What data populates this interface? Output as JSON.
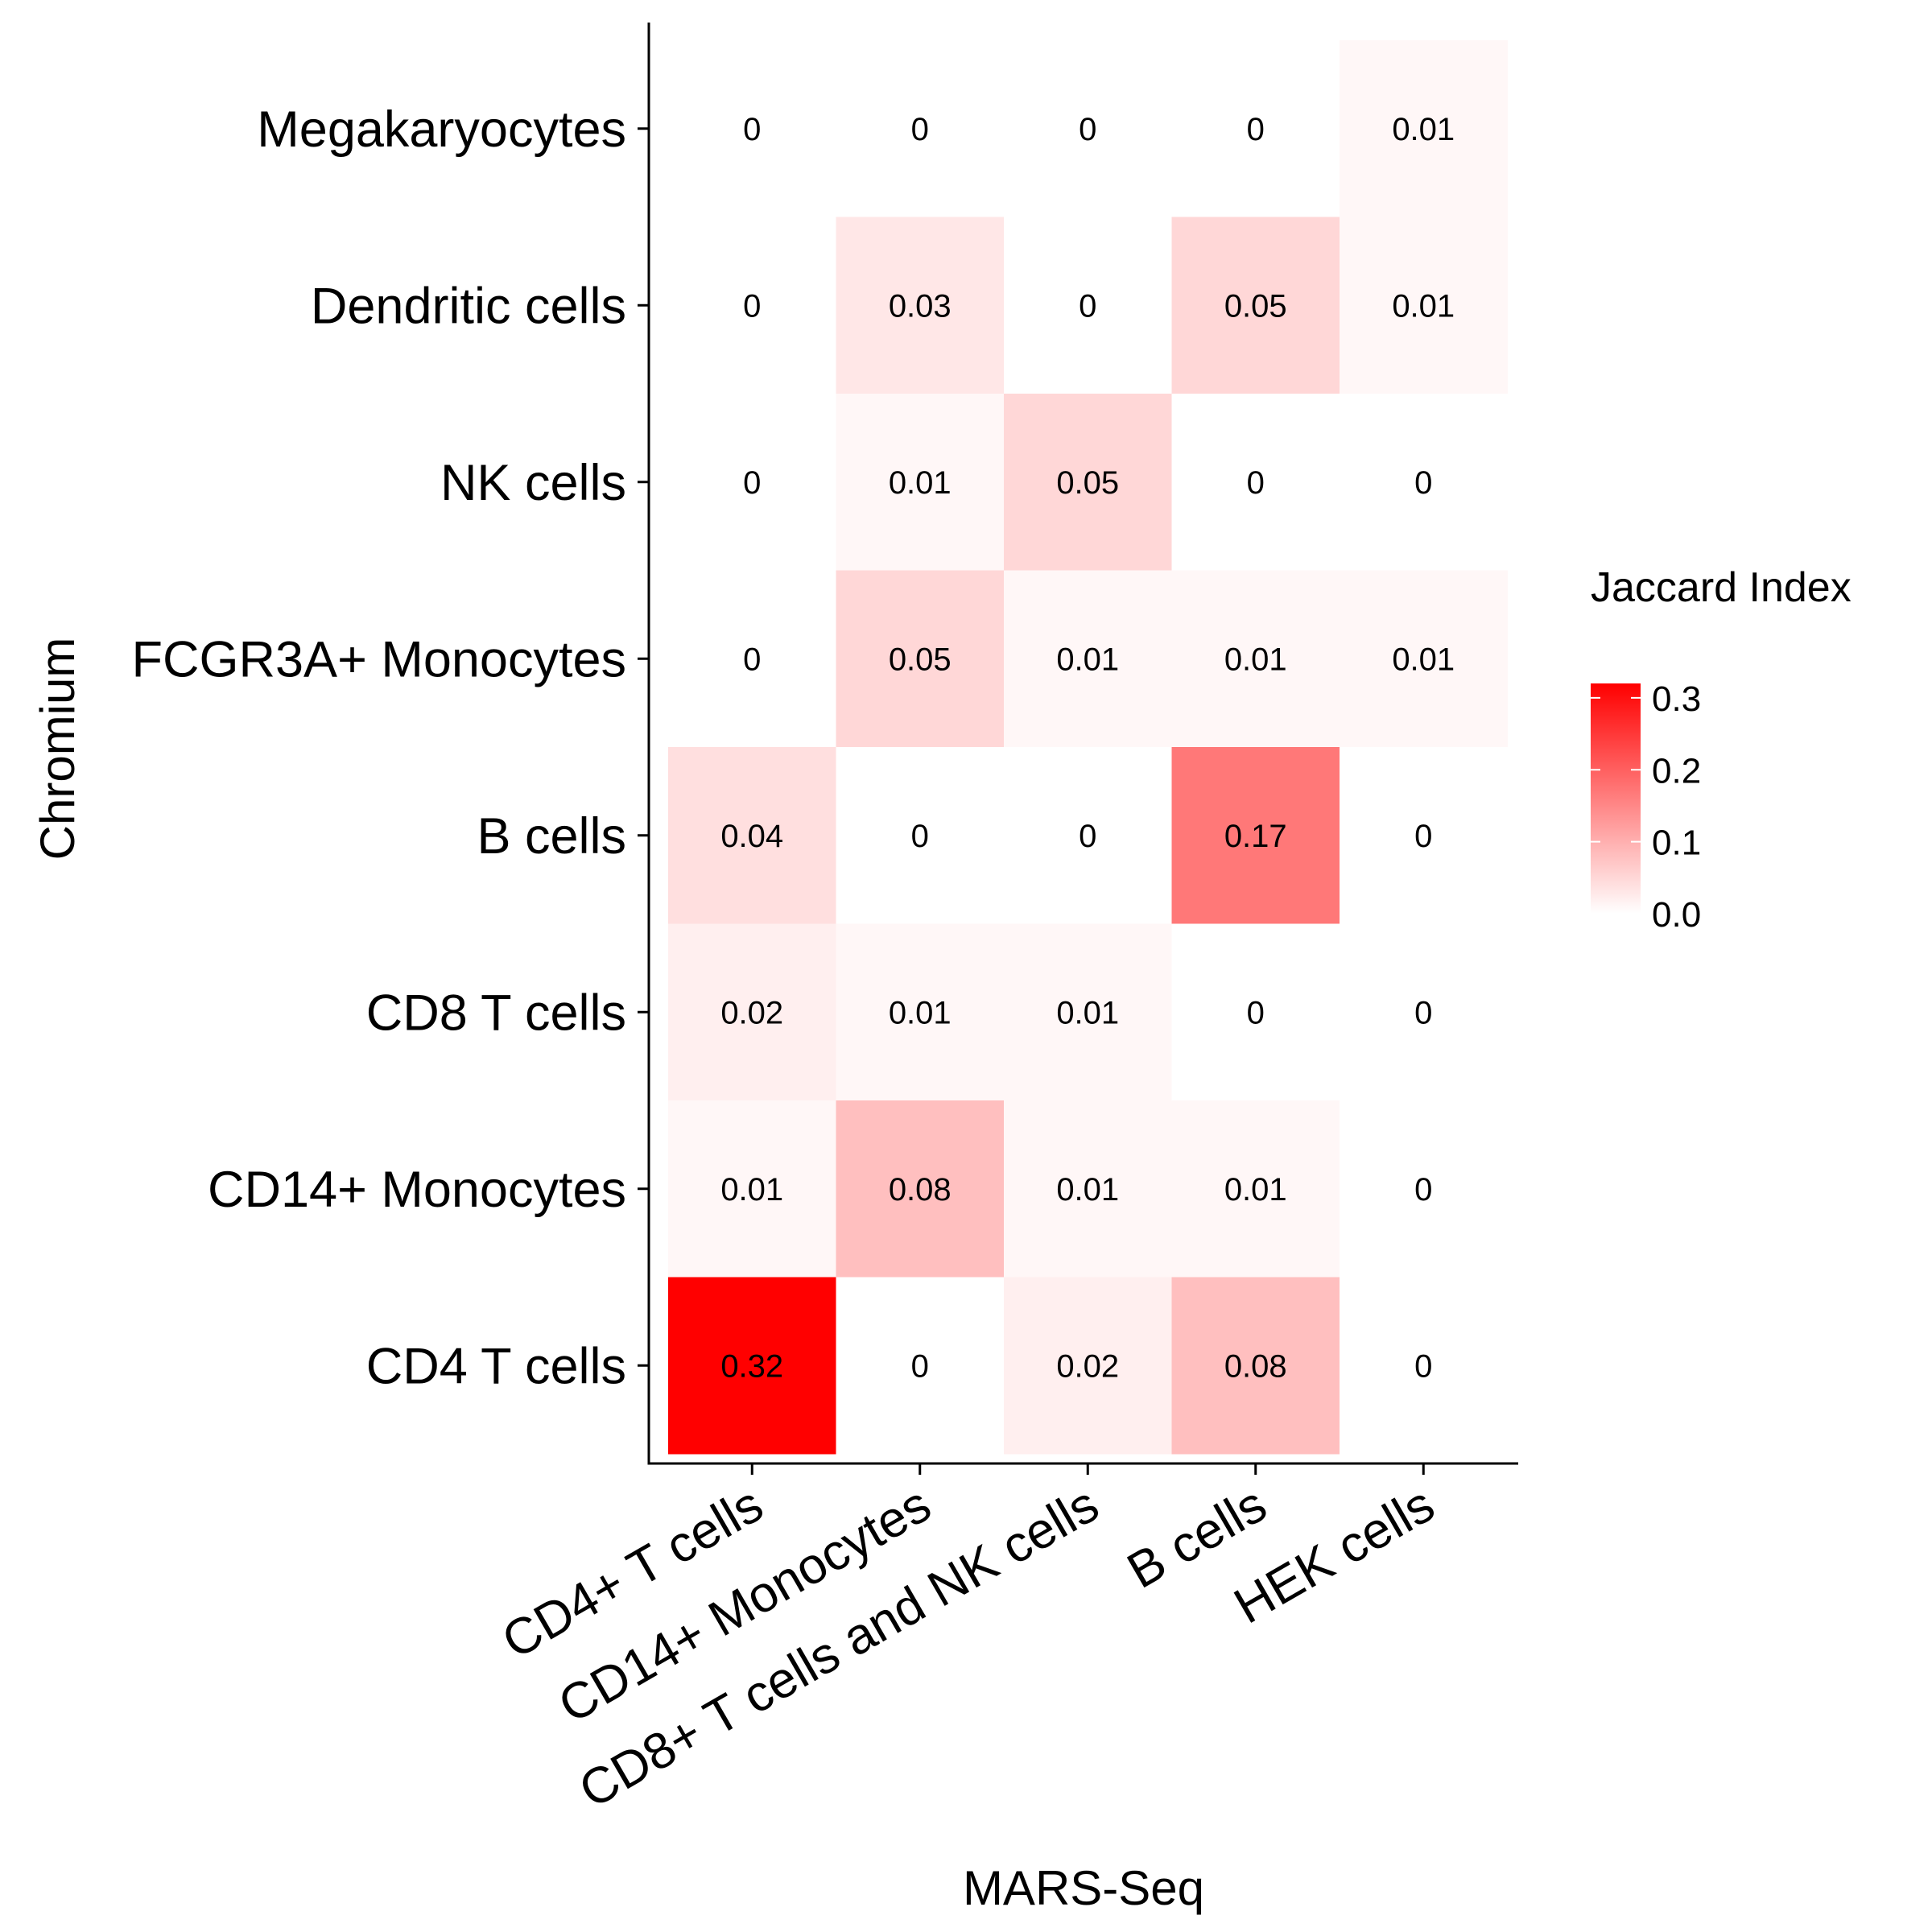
{
  "chart_data": {
    "type": "heatmap",
    "xlabel": "MARS-Seq",
    "ylabel": "Chromium",
    "x_categories": [
      "CD4+ T cells",
      "CD14+ Monocytes",
      "CD8+ T cells and NK cells",
      "B cells",
      "HEK cells"
    ],
    "y_categories": [
      "Megakaryocytes",
      "Dendritic cells",
      "NK cells",
      "FCGR3A+ Monocytes",
      "B cells",
      "CD8 T cells",
      "CD14+ Monocytes",
      "CD4 T cells"
    ],
    "values": [
      [
        0,
        0,
        0,
        0,
        0.01
      ],
      [
        0,
        0.03,
        0,
        0.05,
        0.01
      ],
      [
        0,
        0.01,
        0.05,
        0,
        0
      ],
      [
        0,
        0.05,
        0.01,
        0.01,
        0.01
      ],
      [
        0.04,
        0,
        0,
        0.17,
        0
      ],
      [
        0.02,
        0.01,
        0.01,
        0,
        0
      ],
      [
        0.01,
        0.08,
        0.01,
        0.01,
        0
      ],
      [
        0.32,
        0,
        0.02,
        0.08,
        0
      ]
    ],
    "cell_labels": [
      [
        "0",
        "0",
        "0",
        "0",
        "0.01"
      ],
      [
        "0",
        "0.03",
        "0",
        "0.05",
        "0.01"
      ],
      [
        "0",
        "0.01",
        "0.05",
        "0",
        "0"
      ],
      [
        "0",
        "0.05",
        "0.01",
        "0.01",
        "0.01"
      ],
      [
        "0.04",
        "0",
        "0",
        "0.17",
        "0"
      ],
      [
        "0.02",
        "0.01",
        "0.01",
        "0",
        "0"
      ],
      [
        "0.01",
        "0.08",
        "0.01",
        "0.01",
        "0"
      ],
      [
        "0.32",
        "0",
        "0.02",
        "0.08",
        "0"
      ]
    ],
    "legend": {
      "title": "Jaccard Index",
      "ticks": [
        0.0,
        0.1,
        0.2,
        0.3
      ],
      "tick_labels": [
        "0.0",
        "0.1",
        "0.2",
        "0.3"
      ],
      "range": [
        0,
        0.32
      ],
      "low_color": "#ffffff",
      "high_color": "#ff0000",
      "placement": "right"
    },
    "grid": false
  }
}
